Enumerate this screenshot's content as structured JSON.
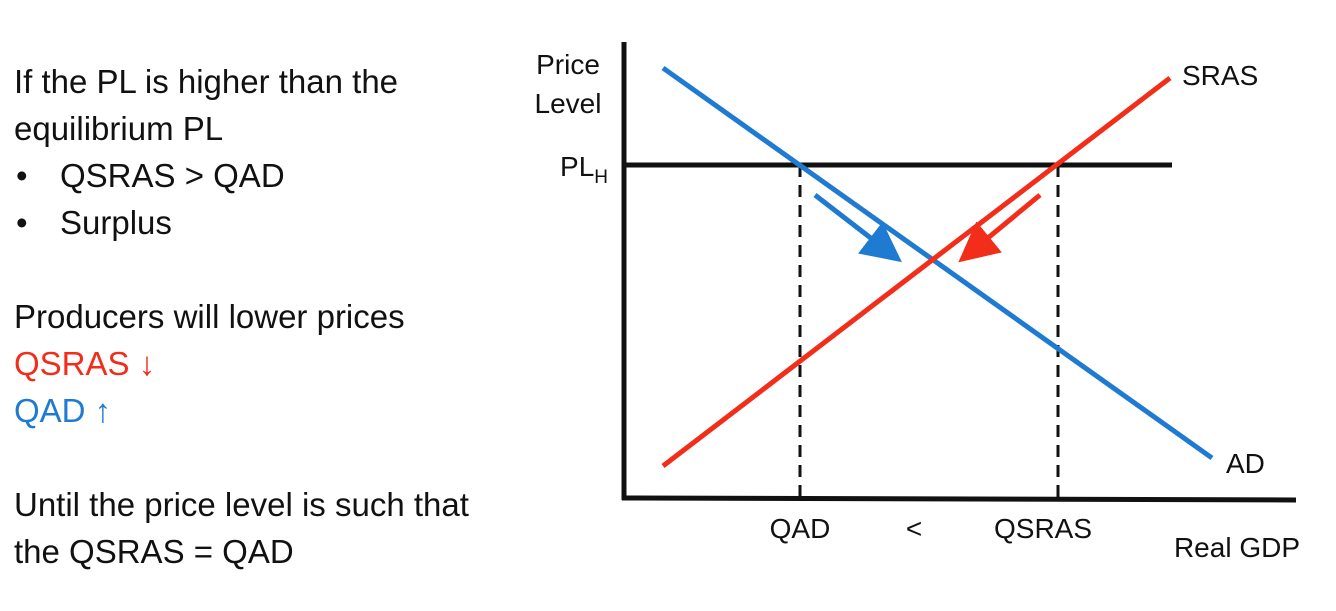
{
  "text_panel": {
    "heading": "If the PL is higher than the equilibrium PL",
    "bullets": [
      "QSRAS > QAD",
      "Surplus"
    ],
    "producers_line": "Producers will lower prices",
    "qsras_line": "QSRAS ↓",
    "qad_line": "QAD ↑",
    "conclusion": "Until the price level is such that the QSRAS = QAD"
  },
  "diagram": {
    "y_axis_label": [
      "Price",
      "Level"
    ],
    "x_axis_label": "Real GDP",
    "price_level_label": "PL",
    "price_level_subscript": "H",
    "srass_label": "SRAS",
    "ad_label": "AD",
    "qad_label": "QAD",
    "comparison_symbol": "<",
    "qsras_label": "QSRAS"
  },
  "colors": {
    "ad": "#1f7bd1",
    "sras": "#f22d1a",
    "axis": "#111111"
  }
}
